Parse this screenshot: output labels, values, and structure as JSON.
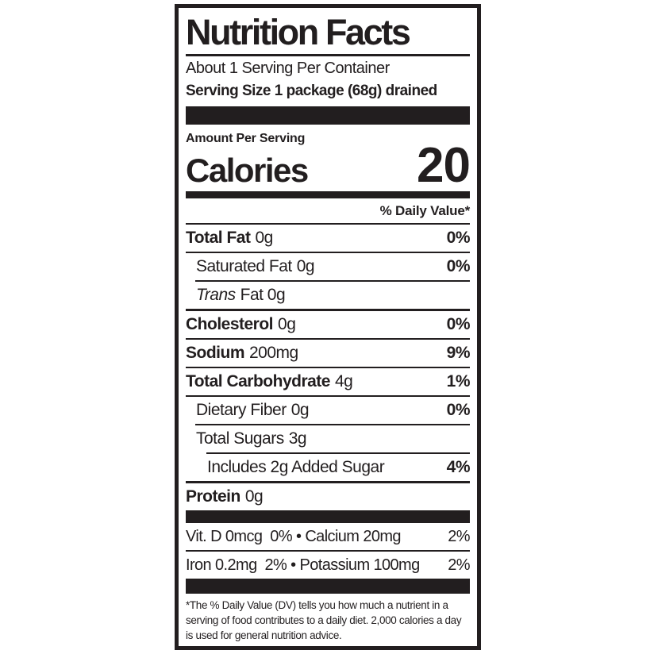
{
  "colors": {
    "ink": "#221e1f",
    "background": "#ffffff"
  },
  "label": {
    "title": "Nutrition Facts",
    "servings_per_container": "About 1 Serving Per Container",
    "serving_size": "Serving Size 1 package (68g) drained",
    "amount_per_serving": "Amount Per Serving",
    "calories_label": "Calories",
    "calories_value": "20",
    "daily_value_header": "% Daily Value*",
    "rows": [
      {
        "name": "Total Fat",
        "amount": "0g",
        "dv": "0%"
      },
      {
        "name": "Saturated Fat",
        "amount": "0g",
        "dv": "0%"
      },
      {
        "name_italic": "Trans",
        "name_rest": "Fat 0g",
        "dv": ""
      },
      {
        "name": "Cholesterol",
        "amount": "0g",
        "dv": "0%"
      },
      {
        "name": "Sodium",
        "amount": "200mg",
        "dv": "9%"
      },
      {
        "name": "Total Carbohydrate",
        "amount": "4g",
        "dv": "1%"
      },
      {
        "name": "Dietary Fiber",
        "amount": "0g",
        "dv": "0%"
      },
      {
        "name": "Total Sugars",
        "amount": "3g",
        "dv": ""
      },
      {
        "name": "Includes 2g Added Sugar",
        "amount": "",
        "dv": "4%"
      },
      {
        "name": "Protein",
        "amount": "0g",
        "dv": ""
      }
    ],
    "micronutrients": [
      {
        "left": "Vit. D 0mcg  0% • Calcium 20mg",
        "dv": "2%"
      },
      {
        "left": "Iron 0.2mg  2% • Potassium 100mg",
        "dv": "2%"
      }
    ],
    "footnote": "*The % Daily Value (DV) tells you how much a nutrient in a serving of food contributes to a daily diet. 2,000 calories a day is used for general nutrition advice."
  }
}
